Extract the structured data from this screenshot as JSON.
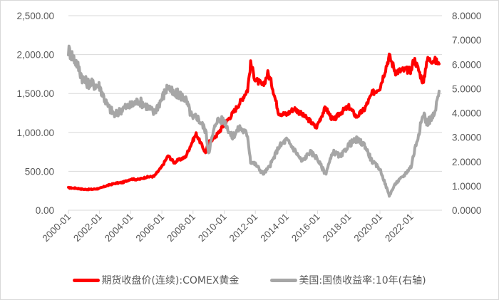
{
  "chart_data": {
    "type": "line",
    "title": "",
    "xlabel": "",
    "ylabel_left": "",
    "ylabel_right": "",
    "x_tick_labels": [
      "2000-01",
      "2002-01",
      "2004-01",
      "2006-01",
      "2008-01",
      "2010-01",
      "2012-01",
      "2014-01",
      "2016-01",
      "2018-01",
      "2020-01",
      "2022-01"
    ],
    "y_left_ticks": [
      "0.00",
      "500.00",
      "1,000.00",
      "1,500.00",
      "2,000.00",
      "2,500.00"
    ],
    "y_right_ticks": [
      "0.0000",
      "1.0000",
      "2.0000",
      "3.0000",
      "4.0000",
      "5.0000",
      "6.0000",
      "7.0000",
      "8.0000"
    ],
    "ylim_left": [
      0,
      2500
    ],
    "ylim_right": [
      0,
      8
    ],
    "grid": "horizontal",
    "legend_position": "bottom",
    "x": [
      2000.0,
      2000.5,
      2001.0,
      2001.5,
      2002.0,
      2002.5,
      2003.0,
      2003.5,
      2004.0,
      2004.5,
      2005.0,
      2005.5,
      2006.0,
      2006.4,
      2006.8,
      2007.0,
      2007.5,
      2008.0,
      2008.2,
      2008.8,
      2009.0,
      2009.5,
      2010.0,
      2010.5,
      2011.0,
      2011.5,
      2011.7,
      2012.0,
      2012.5,
      2012.8,
      2013.0,
      2013.5,
      2014.0,
      2014.5,
      2015.0,
      2015.5,
      2015.9,
      2016.5,
      2017.0,
      2017.5,
      2018.0,
      2018.5,
      2019.0,
      2019.5,
      2020.0,
      2020.6,
      2021.0,
      2021.5,
      2022.0,
      2022.2,
      2022.8,
      2023.0,
      2023.5,
      2023.8
    ],
    "series": [
      {
        "name": "期货收盘价(连续):COMEX黄金",
        "axis": "left",
        "color": "#ff0000",
        "values": [
          288,
          282,
          268,
          268,
          280,
          318,
          345,
          358,
          400,
          395,
          425,
          435,
          560,
          700,
          610,
          640,
          680,
          900,
          980,
          740,
          870,
          960,
          1100,
          1230,
          1380,
          1550,
          1880,
          1680,
          1600,
          1760,
          1660,
          1250,
          1230,
          1310,
          1230,
          1150,
          1060,
          1320,
          1150,
          1260,
          1330,
          1200,
          1300,
          1500,
          1580,
          1980,
          1780,
          1800,
          1800,
          1950,
          1630,
          1930,
          1930,
          1880
        ]
      },
      {
        "name": "美国:国债收益率:10年(右轴)",
        "axis": "right",
        "color": "#a6a6a6",
        "values": [
          6.6,
          6.1,
          5.3,
          5.2,
          5.1,
          4.3,
          3.9,
          4.2,
          4.3,
          4.5,
          4.3,
          4.0,
          4.6,
          5.1,
          4.7,
          4.8,
          4.6,
          3.7,
          3.9,
          3.3,
          2.4,
          3.7,
          3.7,
          3.0,
          3.4,
          3.1,
          2.0,
          1.9,
          1.5,
          1.7,
          1.9,
          2.6,
          2.9,
          2.5,
          2.0,
          2.4,
          2.2,
          1.5,
          2.4,
          2.2,
          2.7,
          2.9,
          2.7,
          2.0,
          1.7,
          0.6,
          1.1,
          1.4,
          1.8,
          2.4,
          4.0,
          3.6,
          3.9,
          4.9
        ]
      }
    ]
  },
  "legend": {
    "items": [
      {
        "label": "期货收盘价(连续):COMEX黄金",
        "color": "#ff0000"
      },
      {
        "label": "美国:国债收益率:10年(右轴)",
        "color": "#a6a6a6"
      }
    ]
  }
}
